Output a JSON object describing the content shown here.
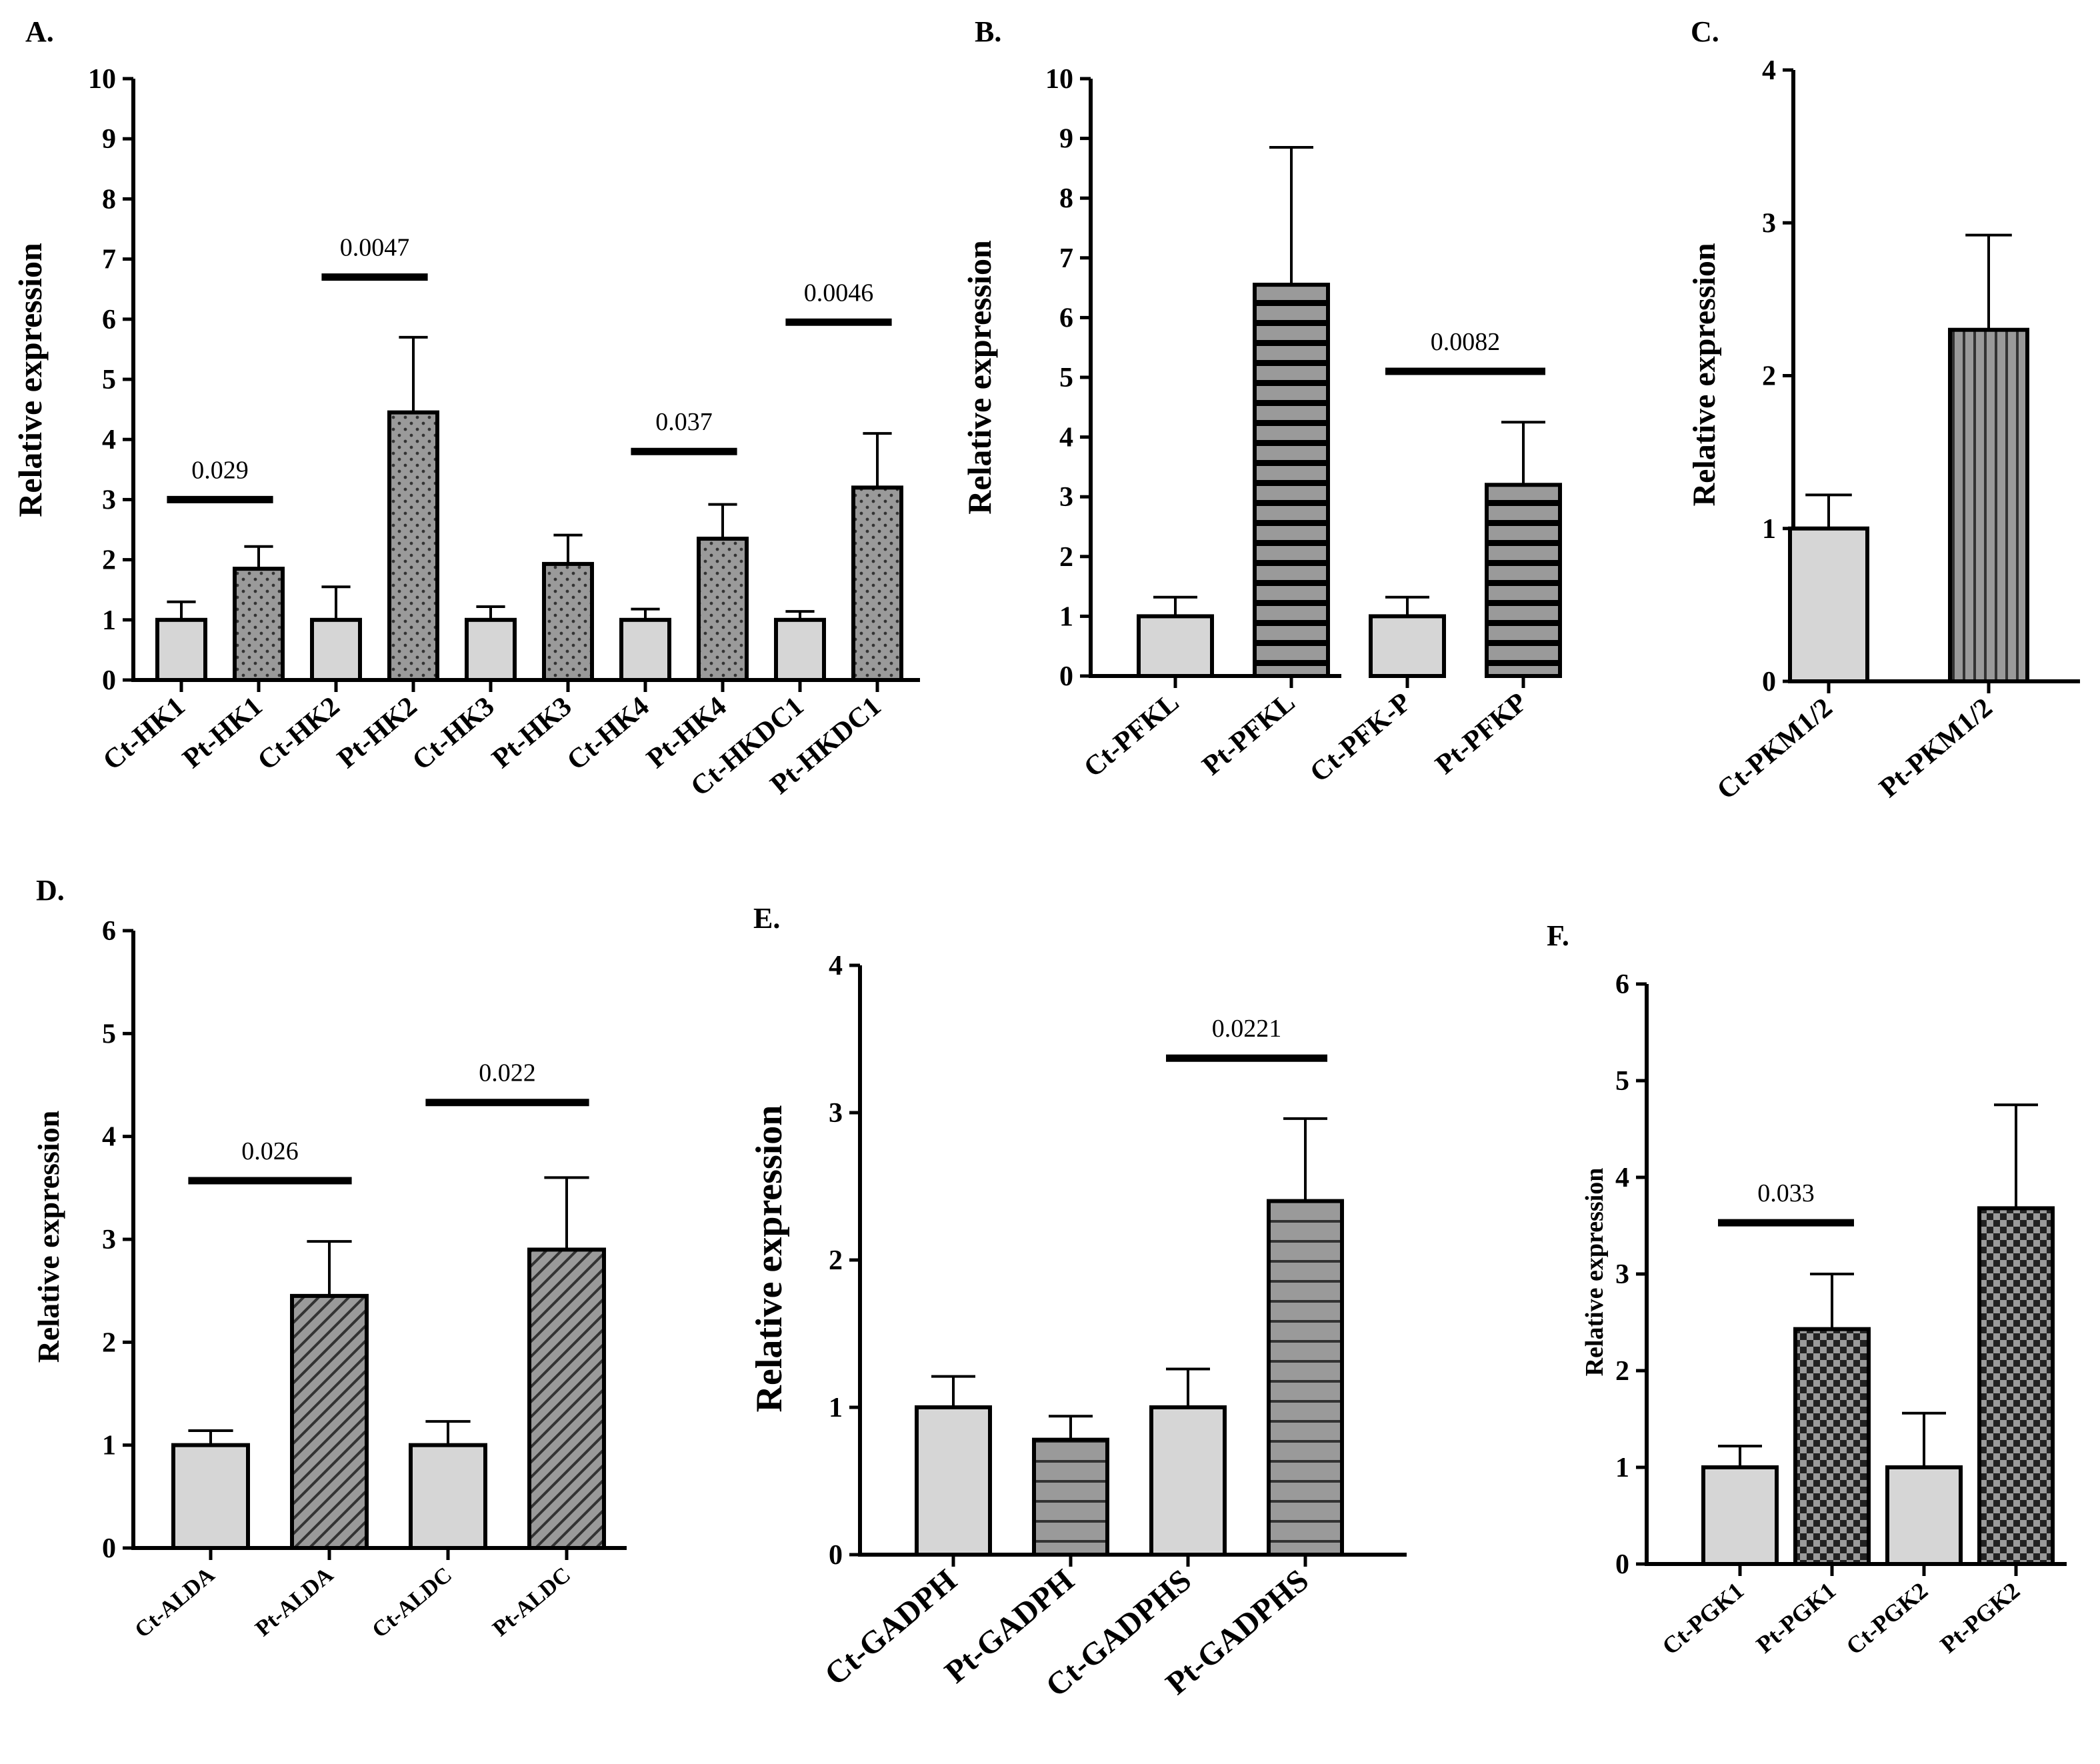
{
  "chart_data": [
    {
      "panel": "A.",
      "type": "bar",
      "ylabel": "Relative expression",
      "ylim": [
        0,
        10
      ],
      "yticks": [
        0,
        1,
        2,
        3,
        4,
        5,
        6,
        7,
        8,
        9,
        10
      ],
      "categories": [
        "Ct-HK1",
        "Pt-HK1",
        "Ct-HK2",
        "Pt-HK2",
        "Ct-HK3",
        "Pt-HK3",
        "Ct-HK4",
        "Pt-HK4",
        "Ct-HKDC1",
        "Pt-HKDC1"
      ],
      "values": [
        1.0,
        1.85,
        1.0,
        4.45,
        1.0,
        1.93,
        1.0,
        2.35,
        1.0,
        3.2
      ],
      "errors": [
        0.3,
        0.37,
        0.55,
        1.25,
        0.22,
        0.48,
        0.18,
        0.57,
        0.14,
        0.9
      ],
      "pattern": "dots",
      "annotations": [
        {
          "text": "0.029",
          "from": 0,
          "to": 1,
          "y": 3.0
        },
        {
          "text": "0.0047",
          "from": 2,
          "to": 3,
          "y": 6.7
        },
        {
          "text": "0.037",
          "from": 6,
          "to": 7,
          "y": 3.8
        },
        {
          "text": "0.0046",
          "from": 8,
          "to": 9,
          "y": 5.95
        }
      ]
    },
    {
      "panel": "B.",
      "type": "bar",
      "ylabel": "Relative expression",
      "ylim": [
        0,
        10
      ],
      "yticks": [
        0,
        1,
        2,
        3,
        4,
        5,
        6,
        7,
        8,
        9,
        10
      ],
      "categories": [
        "Ct-PFKL",
        "Pt-PFKL",
        "Ct-PFK-P",
        "Pt-PFKP"
      ],
      "values": [
        1.0,
        6.55,
        1.0,
        3.2
      ],
      "errors": [
        0.32,
        2.3,
        0.32,
        1.05
      ],
      "pattern": "thick-hstripes",
      "annotations": [
        {
          "text": "0.0082",
          "from": 2,
          "to": 3,
          "y": 5.1
        }
      ]
    },
    {
      "panel": "C.",
      "type": "bar",
      "ylabel": "Relative expression",
      "ylim": [
        0,
        4
      ],
      "yticks": [
        0,
        1,
        2,
        3,
        4
      ],
      "categories": [
        "Ct-PKM1/2",
        "Pt-PKM1/2"
      ],
      "values": [
        1.0,
        2.3
      ],
      "errors": [
        0.22,
        0.62
      ],
      "pattern": "vstripes",
      "annotations": []
    },
    {
      "panel": "D.",
      "type": "bar",
      "ylabel": "Relative expression",
      "ylim": [
        0,
        6
      ],
      "yticks": [
        0,
        1,
        2,
        3,
        4,
        5,
        6
      ],
      "categories": [
        "Ct-ALDA",
        "Pt-ALDA",
        "Ct-ALDC",
        "Pt-ALDC"
      ],
      "values": [
        1.0,
        2.45,
        1.0,
        2.9
      ],
      "errors": [
        0.14,
        0.53,
        0.23,
        0.7
      ],
      "pattern": "diag",
      "annotations": [
        {
          "text": "0.026",
          "from": 0,
          "to": 1,
          "y": 3.57
        },
        {
          "text": "0.022",
          "from": 2,
          "to": 3,
          "y": 4.33
        }
      ]
    },
    {
      "panel": "E.",
      "type": "bar",
      "ylabel": "Relative expression",
      "ylim": [
        0,
        4
      ],
      "yticks": [
        0,
        1,
        2,
        3,
        4
      ],
      "categories": [
        "Ct-GADPH",
        "Pt-GADPH",
        "Ct-GADPHS",
        "Pt-GADPHS"
      ],
      "values": [
        1.0,
        0.78,
        1.0,
        2.4
      ],
      "errors": [
        0.21,
        0.16,
        0.26,
        0.56
      ],
      "pattern": "hstripes",
      "annotations": [
        {
          "text": "0.0221",
          "from": 2,
          "to": 3,
          "y": 3.37
        }
      ]
    },
    {
      "panel": "F.",
      "type": "bar",
      "ylabel": "Relative expression",
      "ylim": [
        0,
        6
      ],
      "yticks": [
        0,
        1,
        2,
        3,
        4,
        5,
        6
      ],
      "categories": [
        "Ct-PGK1",
        "Pt-PGK1",
        "Ct-PGK2",
        "Pt-PGK2"
      ],
      "values": [
        1.0,
        2.43,
        1.0,
        3.68
      ],
      "errors": [
        0.22,
        0.57,
        0.56,
        1.07
      ],
      "pattern": "checker",
      "annotations": [
        {
          "text": "0.033",
          "from": 0,
          "to": 1,
          "y": 3.53
        }
      ]
    }
  ],
  "colors": {
    "control": "#d6d6d6",
    "treated": "#9a9a9a",
    "dark": "#000000",
    "background": "#ffffff"
  }
}
